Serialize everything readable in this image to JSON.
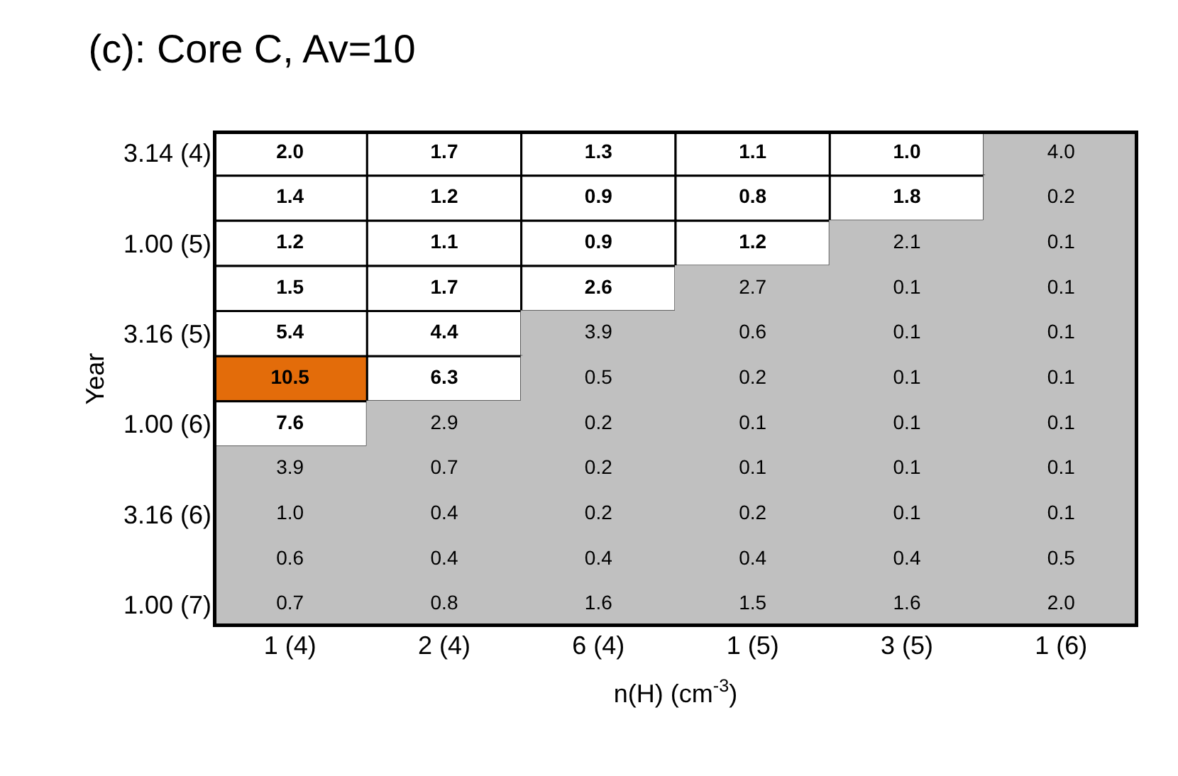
{
  "chart_data": {
    "type": "heatmap",
    "title": "(c): Core C, Av=10",
    "xlabel": "n(H) (cm$^{-3}$)",
    "ylabel": "Year",
    "categories": [
      "1 (4)",
      "2 (4)",
      "6 (4)",
      "1 (5)",
      "3 (5)",
      "1 (6)"
    ],
    "y_categories": [
      "3.14 (4)",
      null,
      "1.00 (5)",
      null,
      "3.16 (5)",
      null,
      "1.00 (6)",
      null,
      "3.16 (6)",
      null,
      "1.00 (7)"
    ],
    "cells": [
      [
        2.0,
        1.7,
        1.3,
        1.1,
        1.0,
        4.0
      ],
      [
        1.4,
        1.2,
        0.9,
        0.8,
        1.8,
        0.2
      ],
      [
        1.2,
        1.1,
        0.9,
        1.2,
        2.1,
        0.1
      ],
      [
        1.5,
        1.7,
        2.6,
        2.7,
        0.1,
        0.1
      ],
      [
        5.4,
        4.4,
        3.9,
        0.6,
        0.1,
        0.1
      ],
      [
        10.5,
        6.3,
        0.5,
        0.2,
        0.1,
        0.1
      ],
      [
        7.6,
        2.9,
        0.2,
        0.1,
        0.1,
        0.1
      ],
      [
        3.9,
        0.7,
        0.2,
        0.1,
        0.1,
        0.1
      ],
      [
        1.0,
        0.4,
        0.2,
        0.2,
        0.1,
        0.1
      ],
      [
        0.6,
        0.4,
        0.4,
        0.4,
        0.4,
        0.5
      ],
      [
        0.7,
        0.8,
        1.6,
        1.5,
        1.6,
        2.0
      ]
    ],
    "cell_labels": [
      [
        "2.0",
        "1.7",
        "1.3",
        "1.1",
        "1.0",
        "4.0"
      ],
      [
        "1.4",
        "1.2",
        "0.9",
        "0.8",
        "1.8",
        "0.2"
      ],
      [
        "1.2",
        "1.1",
        "0.9",
        "1.2",
        "2.1",
        "0.1"
      ],
      [
        "1.5",
        "1.7",
        "2.6",
        "2.7",
        "0.1",
        "0.1"
      ],
      [
        "5.4",
        "4.4",
        "3.9",
        "0.6",
        "0.1",
        "0.1"
      ],
      [
        "10.5",
        "6.3",
        "0.5",
        "0.2",
        "0.1",
        "0.1"
      ],
      [
        "7.6",
        "2.9",
        "0.2",
        "0.1",
        "0.1",
        "0.1"
      ],
      [
        "3.9",
        "0.7",
        "0.2",
        "0.1",
        "0.1",
        "0.1"
      ],
      [
        "1.0",
        "0.4",
        "0.2",
        "0.2",
        "0.1",
        "0.1"
      ],
      [
        "0.6",
        "0.4",
        "0.4",
        "0.4",
        "0.4",
        "0.5"
      ],
      [
        "0.7",
        "0.8",
        "1.6",
        "1.5",
        "1.6",
        "2.0"
      ]
    ],
    "colors": [
      [
        "#ffffff",
        "#ffffff",
        "#ffffff",
        "#ffffff",
        "#ffffff",
        "#c0c0c0"
      ],
      [
        "#ffffff",
        "#ffffff",
        "#ffffff",
        "#ffffff",
        "#ffffff",
        "#c0c0c0"
      ],
      [
        "#ffffff",
        "#ffffff",
        "#ffffff",
        "#ffffff",
        "#c0c0c0",
        "#c0c0c0"
      ],
      [
        "#ffffff",
        "#ffffff",
        "#ffffff",
        "#c0c0c0",
        "#c0c0c0",
        "#c0c0c0"
      ],
      [
        "#ffffff",
        "#ffffff",
        "#c0c0c0",
        "#c0c0c0",
        "#c0c0c0",
        "#c0c0c0"
      ],
      [
        "#e36c0a",
        "#ffffff",
        "#c0c0c0",
        "#c0c0c0",
        "#c0c0c0",
        "#c0c0c0"
      ],
      [
        "#ffffff",
        "#c0c0c0",
        "#c0c0c0",
        "#c0c0c0",
        "#c0c0c0",
        "#c0c0c0"
      ],
      [
        "#c0c0c0",
        "#c0c0c0",
        "#c0c0c0",
        "#c0c0c0",
        "#c0c0c0",
        "#c0c0c0"
      ],
      [
        "#c0c0c0",
        "#c0c0c0",
        "#c0c0c0",
        "#c0c0c0",
        "#c0c0c0",
        "#c0c0c0"
      ],
      [
        "#c0c0c0",
        "#c0c0c0",
        "#c0c0c0",
        "#c0c0c0",
        "#c0c0c0",
        "#c0c0c0"
      ],
      [
        "#c0c0c0",
        "#c0c0c0",
        "#c0c0c0",
        "#c0c0c0",
        "#c0c0c0",
        "#c0c0c0"
      ]
    ],
    "data_labels": true
  }
}
